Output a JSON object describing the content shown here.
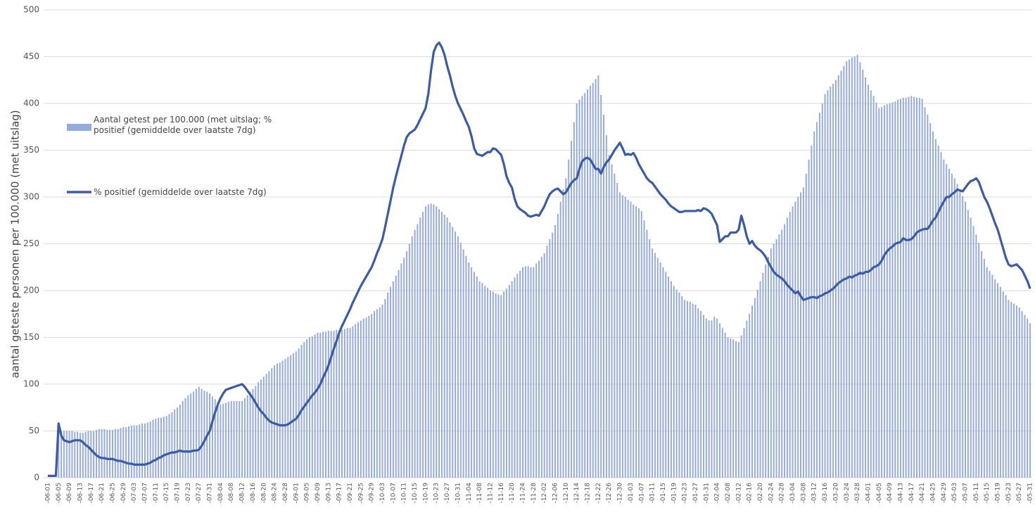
{
  "chart_data": {
    "type": "bar",
    "y_label": "aantal geteste personen per 100.000 (met uitslag)",
    "ylim": [
      0,
      500
    ],
    "yticks": [
      0,
      50,
      100,
      150,
      200,
      250,
      300,
      350,
      400,
      450,
      500
    ],
    "grid": true,
    "categories": [
      "-06-01",
      null,
      null,
      null,
      "-06-05",
      null,
      null,
      null,
      "-06-09",
      null,
      null,
      null,
      "-06-13",
      null,
      null,
      null,
      "-06-17",
      null,
      null,
      null,
      "-06-21",
      null,
      null,
      null,
      "-06-25",
      null,
      null,
      null,
      "-06-29",
      null,
      null,
      null,
      "-07-03",
      null,
      null,
      null,
      "-07-07",
      null,
      null,
      null,
      "-07-11",
      null,
      null,
      null,
      "-07-15",
      null,
      null,
      null,
      "-07-19",
      null,
      null,
      null,
      "-07-23",
      null,
      null,
      null,
      "-07-27",
      null,
      null,
      null,
      "-07-31",
      null,
      null,
      null,
      "-08-04",
      null,
      null,
      null,
      "-08-08",
      null,
      null,
      null,
      "-08-12",
      null,
      null,
      null,
      "-08-16",
      null,
      null,
      null,
      "-08-20",
      null,
      null,
      null,
      "-08-24",
      null,
      null,
      null,
      "-08-28",
      null,
      null,
      null,
      "-09-01",
      null,
      null,
      null,
      "-09-05",
      null,
      null,
      null,
      "-09-09",
      null,
      null,
      null,
      "-09-13",
      null,
      null,
      null,
      "-09-17",
      null,
      null,
      null,
      "-09-21",
      null,
      null,
      null,
      "-09-25",
      null,
      null,
      null,
      "-09-29",
      null,
      null,
      null,
      "-10-03",
      null,
      null,
      null,
      "-10-07",
      null,
      null,
      null,
      "-10-11",
      null,
      null,
      null,
      "-10-15",
      null,
      null,
      null,
      "-10-19",
      null,
      null,
      null,
      "-10-23",
      null,
      null,
      null,
      "-10-27",
      null,
      null,
      null,
      "-10-31",
      null,
      null,
      null,
      "-11-04",
      null,
      null,
      null,
      "-11-08",
      null,
      null,
      null,
      "-11-12",
      null,
      null,
      null,
      "-11-16",
      null,
      null,
      null,
      "-11-20",
      null,
      null,
      null,
      "-11-24",
      null,
      null,
      null,
      "-11-28",
      null,
      null,
      null,
      "-12-02",
      null,
      null,
      null,
      "-12-06",
      null,
      null,
      null,
      "-12-10",
      null,
      null,
      null,
      "-12-14",
      null,
      null,
      null,
      "-12-18",
      null,
      null,
      null,
      "-12-22",
      null,
      null,
      null,
      "-12-26",
      null,
      null,
      null,
      "-12-30",
      null,
      null,
      null,
      "-01-03",
      null,
      null,
      null,
      "-01-07",
      null,
      null,
      null,
      "-01-11",
      null,
      null,
      null,
      "-01-15",
      null,
      null,
      null,
      "-01-19",
      null,
      null,
      null,
      "-01-23",
      null,
      null,
      null,
      "-01-27",
      null,
      null,
      null,
      "-01-31",
      null,
      null,
      null,
      "-02-04",
      null,
      null,
      null,
      "-02-08",
      null,
      null,
      null,
      "-02-12",
      null,
      null,
      null,
      "-02-16",
      null,
      null,
      null,
      "-02-20",
      null,
      null,
      null,
      "-02-24",
      null,
      null,
      null,
      "-02-28",
      null,
      null,
      null,
      "-03-04",
      null,
      null,
      null,
      "-03-08",
      null,
      null,
      null,
      "-03-12",
      null,
      null,
      null,
      "-03-16",
      null,
      null,
      null,
      "-03-20",
      null,
      null,
      null,
      "-03-24",
      null,
      null,
      null,
      "-03-28",
      null,
      null,
      null,
      "-04-01",
      null,
      null,
      null,
      "-04-05",
      null,
      null,
      null,
      "-04-09",
      null,
      null,
      null,
      "-04-13",
      null,
      null,
      null,
      "-04-17",
      null,
      null,
      null,
      "-04-21",
      null,
      null,
      null,
      "-04-25",
      null,
      null,
      null,
      "-04-29",
      null,
      null,
      null,
      "-05-03",
      null,
      null,
      null,
      "-05-07",
      null,
      null,
      null,
      "-05-11",
      null,
      null,
      null,
      "-05-15",
      null,
      null,
      null,
      "-05-19",
      null,
      null,
      null,
      "-05-23",
      null,
      null,
      null,
      "-05-27",
      null,
      null,
      null,
      "-05-31"
    ],
    "series": [
      {
        "name": "Aantal getest per 100.000 (met uitslag; % positief (gemiddelde over laatste 7dg)",
        "type": "bar",
        "color": "#97abdb",
        "values": [
          0,
          0,
          0,
          0,
          50,
          50,
          50,
          50,
          50,
          50,
          49,
          49,
          48,
          48,
          49,
          50,
          50,
          50,
          51,
          52,
          52,
          52,
          51,
          51,
          51,
          52,
          52,
          53,
          54,
          54,
          55,
          56,
          56,
          56,
          57,
          58,
          58,
          59,
          60,
          62,
          63,
          64,
          64,
          65,
          66,
          68,
          70,
          73,
          75,
          78,
          82,
          85,
          88,
          90,
          92,
          95,
          97,
          95,
          93,
          92,
          90,
          87,
          84,
          81,
          78,
          79,
          80,
          81,
          82,
          82,
          82,
          82,
          82,
          85,
          88,
          92,
          95,
          98,
          102,
          105,
          108,
          111,
          114,
          117,
          120,
          122,
          123,
          125,
          127,
          129,
          131,
          133,
          135,
          138,
          142,
          145,
          148,
          150,
          151,
          153,
          155,
          155,
          156,
          156,
          157,
          157,
          157,
          158,
          158,
          158,
          159,
          160,
          160,
          162,
          164,
          166,
          168,
          170,
          171,
          173,
          175,
          178,
          180,
          182,
          185,
          191,
          198,
          204,
          210,
          216,
          222,
          229,
          235,
          242,
          250,
          258,
          265,
          271,
          278,
          284,
          290,
          292,
          293,
          292,
          290,
          287,
          284,
          281,
          278,
          273,
          268,
          263,
          258,
          251,
          244,
          237,
          230,
          225,
          220,
          215,
          210,
          208,
          205,
          203,
          200,
          199,
          197,
          196,
          195,
          199,
          202,
          206,
          210,
          214,
          218,
          221,
          225,
          226,
          226,
          225,
          225,
          229,
          232,
          236,
          240,
          248,
          255,
          262,
          270,
          282,
          295,
          308,
          320,
          340,
          360,
          380,
          400,
          404,
          408,
          411,
          415,
          419,
          422,
          426,
          430,
          409,
          388,
          366,
          345,
          335,
          325,
          315,
          305,
          302,
          300,
          297,
          295,
          292,
          290,
          288,
          285,
          275,
          265,
          255,
          245,
          240,
          235,
          230,
          225,
          220,
          215,
          210,
          205,
          201,
          198,
          194,
          190,
          189,
          188,
          186,
          185,
          181,
          178,
          174,
          170,
          168,
          168,
          172,
          170,
          165,
          160,
          155,
          150,
          149,
          148,
          146,
          145,
          152,
          160,
          168,
          175,
          184,
          192,
          201,
          210,
          219,
          228,
          236,
          245,
          250,
          255,
          260,
          265,
          271,
          278,
          284,
          290,
          295,
          300,
          305,
          310,
          325,
          340,
          355,
          370,
          380,
          390,
          400,
          410,
          414,
          418,
          421,
          425,
          430,
          435,
          440,
          445,
          447,
          449,
          450,
          452,
          444,
          436,
          428,
          420,
          414,
          408,
          401,
          395,
          396,
          398,
          399,
          400,
          401,
          402,
          404,
          405,
          406,
          406,
          407,
          408,
          407,
          406,
          406,
          405,
          396,
          388,
          379,
          370,
          362,
          355,
          348,
          340,
          335,
          330,
          325,
          320,
          314,
          308,
          301,
          295,
          286,
          278,
          269,
          260,
          251,
          242,
          234,
          225,
          221,
          217,
          212,
          208,
          204,
          199,
          195,
          190,
          188,
          186,
          184,
          182,
          178,
          174,
          170,
          165
        ]
      },
      {
        "name": "% positief (gemiddelde over laatste 7dg)",
        "type": "line",
        "color": "#3b5ba5",
        "values": [
          2,
          2,
          2,
          2,
          58,
          45,
          40,
          39,
          38,
          39,
          40,
          40,
          40,
          38,
          35,
          33,
          30,
          27,
          24,
          22,
          21,
          21,
          20,
          20,
          20,
          19,
          18,
          18,
          17,
          16,
          15,
          15,
          14,
          14,
          14,
          14,
          14,
          15,
          16,
          18,
          19,
          21,
          22,
          24,
          25,
          26,
          27,
          27,
          28,
          29,
          28,
          28,
          28,
          28,
          29,
          29,
          30,
          34,
          39,
          45,
          50,
          60,
          70,
          78,
          85,
          90,
          94,
          95,
          96,
          97,
          98,
          99,
          100,
          97,
          93,
          89,
          85,
          80,
          75,
          71,
          68,
          64,
          61,
          59,
          58,
          57,
          56,
          56,
          56,
          57,
          59,
          61,
          63,
          67,
          72,
          76,
          80,
          84,
          88,
          91,
          95,
          100,
          107,
          113,
          120,
          129,
          138,
          146,
          155,
          162,
          168,
          174,
          180,
          187,
          193,
          199,
          205,
          210,
          215,
          220,
          225,
          232,
          240,
          247,
          255,
          268,
          282,
          296,
          310,
          322,
          333,
          344,
          355,
          364,
          368,
          370,
          372,
          377,
          383,
          389,
          395,
          410,
          435,
          455,
          462,
          465,
          460,
          452,
          440,
          430,
          418,
          408,
          400,
          394,
          388,
          381,
          375,
          365,
          352,
          346,
          345,
          344,
          346,
          348,
          348,
          352,
          351,
          348,
          345,
          335,
          322,
          315,
          310,
          298,
          290,
          287,
          285,
          283,
          280,
          279,
          280,
          281,
          280,
          285,
          290,
          297,
          303,
          306,
          308,
          309,
          306,
          303,
          305,
          310,
          315,
          318,
          320,
          330,
          338,
          341,
          342,
          340,
          335,
          330,
          330,
          325,
          332,
          337,
          340,
          345,
          350,
          354,
          358,
          352,
          345,
          346,
          345,
          347,
          342,
          335,
          330,
          325,
          320,
          317,
          315,
          311,
          307,
          303,
          300,
          297,
          293,
          290,
          288,
          286,
          284,
          284,
          285,
          285,
          285,
          285,
          285,
          286,
          285,
          288,
          287,
          285,
          282,
          276,
          270,
          252,
          255,
          258,
          258,
          262,
          262,
          262,
          265,
          280,
          270,
          258,
          250,
          253,
          248,
          245,
          243,
          240,
          236,
          230,
          225,
          220,
          217,
          215,
          213,
          210,
          206,
          203,
          200,
          197,
          199,
          194,
          190,
          191,
          192,
          193,
          193,
          192,
          194,
          195,
          197,
          198,
          200,
          202,
          205,
          208,
          210,
          212,
          213,
          215,
          214,
          216,
          217,
          219,
          218,
          220,
          220,
          222,
          225,
          226,
          228,
          232,
          238,
          242,
          245,
          247,
          250,
          251,
          252,
          256,
          254,
          254,
          255,
          258,
          262,
          264,
          265,
          266,
          266,
          270,
          275,
          278,
          284,
          290,
          295,
          300,
          300,
          303,
          305,
          308,
          307,
          306,
          310,
          314,
          317,
          318,
          320,
          316,
          308,
          300,
          295,
          288,
          280,
          272,
          265,
          255,
          245,
          235,
          228,
          226,
          227,
          228,
          225,
          222,
          216,
          210,
          202
        ]
      }
    ]
  }
}
